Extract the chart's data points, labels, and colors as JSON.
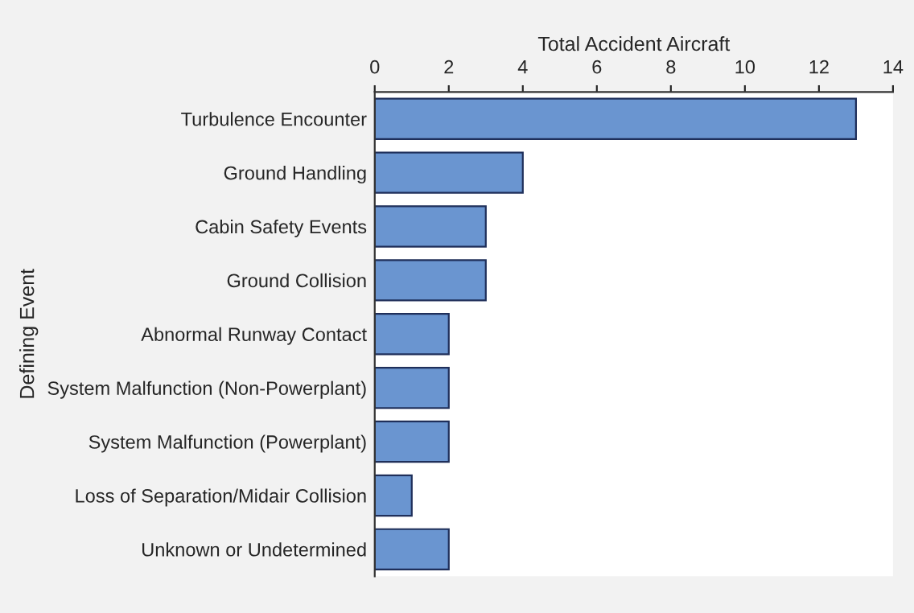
{
  "chart_data": {
    "type": "bar",
    "orientation": "horizontal",
    "xlabel": "Total Accident Aircraft",
    "ylabel": "Defining Event",
    "categories": [
      "Turbulence Encounter",
      "Ground Handling",
      "Cabin Safety Events",
      "Ground Collision",
      "Abnormal Runway Contact",
      "System Malfunction (Non-Powerplant)",
      "System Malfunction (Powerplant)",
      "Loss of Separation/Midair Collision",
      "Unknown or Undetermined"
    ],
    "values": [
      13,
      4,
      3,
      3,
      2,
      2,
      2,
      1,
      2
    ],
    "color": "#6a95d0",
    "xlim": [
      0,
      14
    ],
    "xticks": [
      0,
      2,
      4,
      6,
      8,
      10,
      12,
      14
    ],
    "grid": false,
    "legend": false
  }
}
